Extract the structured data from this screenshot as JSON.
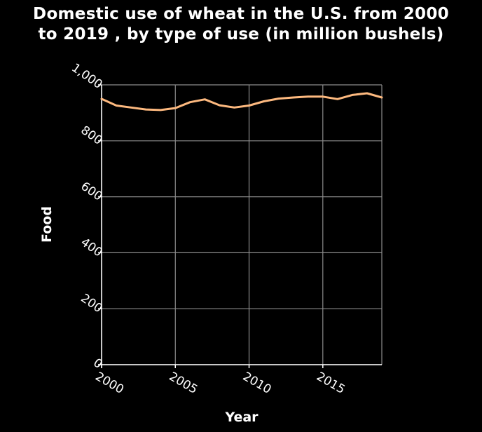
{
  "chart_data": {
    "type": "line",
    "title_line1": "Domestic use of wheat in the U.S. from 2000",
    "title_line2": "to 2019 , by type of use (in million bushels)",
    "xlabel": "Year",
    "ylabel": "Food",
    "xlim": [
      2000,
      2019
    ],
    "ylim": [
      0,
      1000
    ],
    "x_ticks": [
      2000,
      2005,
      2010,
      2015
    ],
    "x_tick_labels": [
      "2000",
      "2005",
      "2010",
      "2015"
    ],
    "y_ticks": [
      0,
      200,
      400,
      600,
      800,
      1000
    ],
    "y_tick_labels": [
      "0",
      "200",
      "400",
      "600",
      "800",
      "1,000"
    ],
    "grid": true,
    "series": [
      {
        "color": "#fdb97f",
        "x": [
          2000,
          2001,
          2002,
          2003,
          2004,
          2005,
          2006,
          2007,
          2008,
          2009,
          2010,
          2011,
          2012,
          2013,
          2014,
          2015,
          2016,
          2017,
          2018,
          2019
        ],
        "values": [
          950,
          926,
          919,
          912,
          910,
          917,
          938,
          948,
          927,
          919,
          926,
          941,
          951,
          955,
          958,
          958,
          949,
          964,
          970,
          955
        ]
      }
    ]
  }
}
